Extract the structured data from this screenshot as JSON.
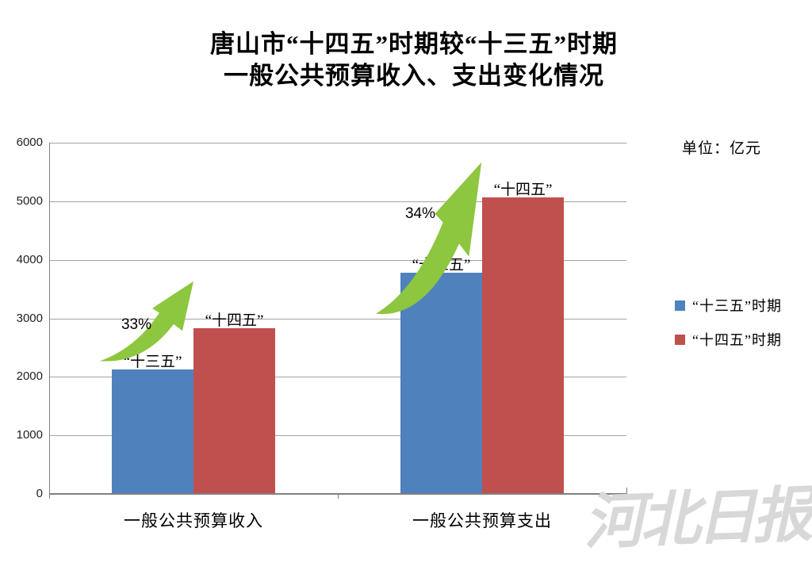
{
  "title": {
    "line1": "唐山市“十四五”时期较“十三五”时期",
    "line2": "一般公共预算收入、支出变化情况"
  },
  "unit_label": "单位：亿元",
  "legend": [
    {
      "label": "“十三五”时期",
      "color": "#4f81bd"
    },
    {
      "label": "“十四五”时期",
      "color": "#c0504d"
    }
  ],
  "watermark": "河北日报",
  "chart_data": {
    "type": "bar",
    "title": "唐山市“十四五”时期较“十三五”时期一般公共预算收入、支出变化情况",
    "unit": "亿元",
    "categories": [
      "一般公共预算收入",
      "一般公共预算支出"
    ],
    "series": [
      {
        "name": "“十三五”时期",
        "color": "#4f81bd",
        "values": [
          2130,
          3780
        ]
      },
      {
        "name": "“十四五”时期",
        "color": "#c0504d",
        "values": [
          2835,
          5065
        ]
      }
    ],
    "growth_labels": [
      "33%",
      "34%"
    ],
    "point_labels": [
      [
        "“十三五”",
        "“十四五”"
      ],
      [
        "“十三五”",
        "“十四五”"
      ]
    ],
    "ylim": [
      0,
      6000
    ],
    "ytick_step": 1000,
    "grid": true,
    "legend_position": "right",
    "arrow_color": "#8dc63f",
    "gridline_color": "#a3a3a3",
    "axis_color": "#808080"
  }
}
